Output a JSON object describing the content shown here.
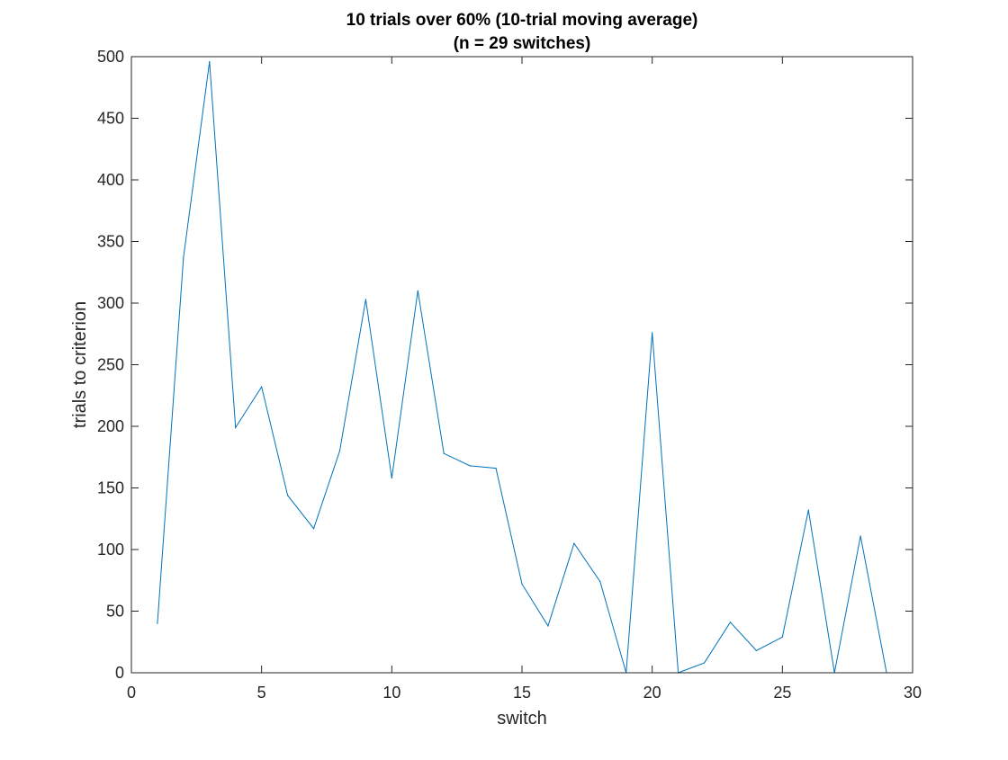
{
  "chart_data": {
    "type": "line",
    "title": "10 trials over 60% (10-trial moving average)",
    "subtitle": "(n = 29 switches)",
    "xlabel": "switch",
    "ylabel": "trials to criterion",
    "xlim": [
      0,
      30
    ],
    "ylim": [
      0,
      500
    ],
    "x_ticks": [
      0,
      5,
      10,
      15,
      20,
      25,
      30
    ],
    "y_ticks": [
      0,
      50,
      100,
      150,
      200,
      250,
      300,
      350,
      400,
      450,
      500
    ],
    "grid": false,
    "legend": "none",
    "series": [
      {
        "color": "#0072BD",
        "x": [
          1,
          2,
          3,
          4,
          5,
          6,
          7,
          8,
          9,
          10,
          11,
          12,
          13,
          14,
          15,
          16,
          17,
          18,
          19,
          20,
          21,
          22,
          23,
          24,
          25,
          26,
          27,
          28,
          29
        ],
        "y": [
          40,
          337,
          496,
          199,
          232,
          144,
          117,
          180,
          303,
          158,
          310,
          178,
          168,
          166,
          72,
          38,
          105,
          74,
          0,
          276,
          0,
          8,
          41,
          18,
          29,
          132,
          0,
          111,
          0
        ]
      }
    ]
  }
}
